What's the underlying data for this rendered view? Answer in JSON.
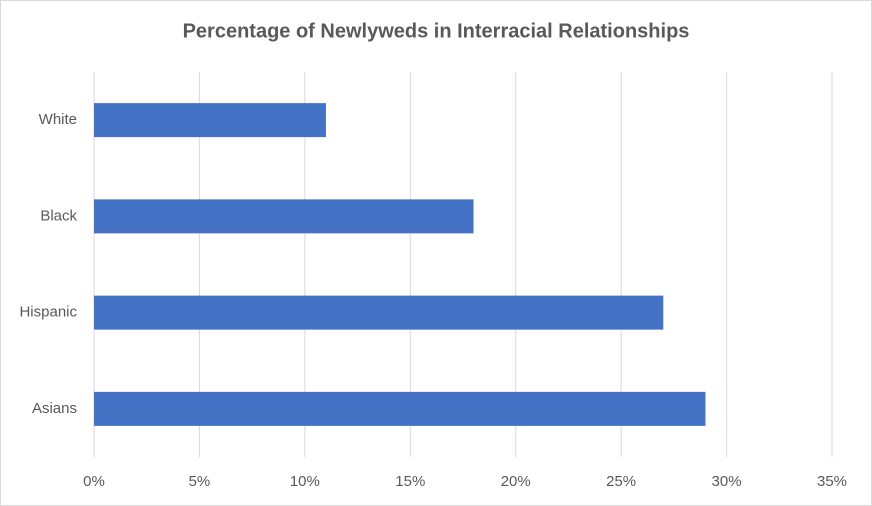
{
  "chart_data": {
    "type": "hbar",
    "title": "Percentage of Newlyweds in Interracial Relationships",
    "categories": [
      "White",
      "Black",
      "Hispanic",
      "Asians"
    ],
    "values": [
      11,
      18,
      27,
      29
    ],
    "color": "#4472c4",
    "xlim": [
      0,
      35
    ],
    "xticks": [
      {
        "value": 0,
        "label": "0%"
      },
      {
        "value": 5,
        "label": "5%"
      },
      {
        "value": 10,
        "label": "10%"
      },
      {
        "value": 15,
        "label": "15%"
      },
      {
        "value": 20,
        "label": "20%"
      },
      {
        "value": 25,
        "label": "25%"
      },
      {
        "value": 30,
        "label": "30%"
      },
      {
        "value": 35,
        "label": "35%"
      }
    ],
    "grid": true
  }
}
